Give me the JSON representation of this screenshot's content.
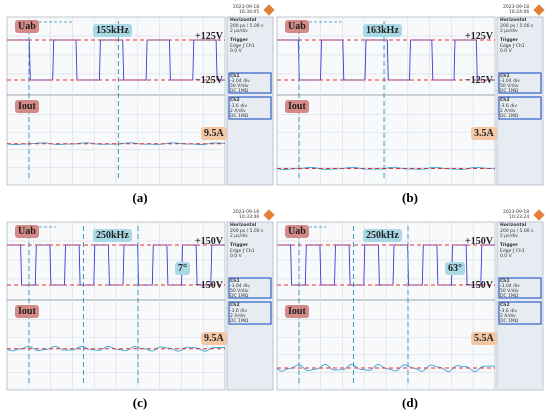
{
  "panels": [
    {
      "id": "a",
      "caption": "(a)",
      "date": "2023-09-18",
      "time": "16:34:05",
      "uab_label": "Uab",
      "iout_label": "Iout",
      "freq_label": "155kHz",
      "vpos_label": "+125V",
      "vneg_label": "−125V",
      "current_label": "9.5A",
      "angle_label": "",
      "menu": {
        "horizontal": "Horizontal",
        "h1": "200 ps / 5.00 s",
        "h2": "2 μs/div",
        "trigger": "Trigger",
        "t1": "Edge  ƒ  Ch1",
        "t2": "0.0 V",
        "ch1": "Ch1",
        "c1": "-3.04 div",
        "c2": "50 V/div",
        "c3": "DC 1MΩ",
        "ch2": "Ch2",
        "c4": "-3.6 div",
        "c5": "2 A/div",
        "c6": "DC 1MΩ"
      },
      "square_period_div": 2.05,
      "duty": 0.5,
      "current_ripple": 0.12,
      "current_level": 1.5
    },
    {
      "id": "b",
      "caption": "(b)",
      "date": "2023-09-18",
      "time": "16:24:06",
      "uab_label": "Uab",
      "iout_label": "Iout",
      "freq_label": "163kHz",
      "vpos_label": "+125V",
      "vneg_label": "−125V",
      "current_label": "3.5A",
      "angle_label": "",
      "menu": {
        "horizontal": "Horizontal",
        "h1": "200 ps / 5.00 s",
        "h2": "2 μs/div",
        "trigger": "Trigger",
        "t1": "Edge  ƒ  Ch1",
        "t2": "0.0 V",
        "ch1": "Ch1",
        "c1": "-3.04 div",
        "c2": "50 V/div",
        "c3": "DC 1MΩ",
        "ch2": "Ch2",
        "c4": "-3.6 div",
        "c5": "2 A/div",
        "c6": "DC 1MΩ"
      },
      "square_period_div": 1.95,
      "duty": 0.5,
      "current_ripple": 0.15,
      "current_level": 0.6
    },
    {
      "id": "c",
      "caption": "(c)",
      "date": "2023-09-18",
      "time": "10:33:46",
      "uab_label": "Uab",
      "iout_label": "Iout",
      "freq_label": "250kHz",
      "vpos_label": "+150V",
      "vneg_label": "−150V",
      "current_label": "9.5A",
      "angle_label": "7°",
      "menu": {
        "horizontal": "Horizontal",
        "h1": "200 ps / 5.00 s",
        "h2": "2 μs/div",
        "trigger": "Trigger",
        "t1": "Edge  ƒ  Ch1",
        "t2": "0.0 V",
        "ch1": "Ch1",
        "c1": "-3.04 div",
        "c2": "50 V/div",
        "c3": "DC 1MΩ",
        "ch2": "Ch2",
        "c4": "-3.6 div",
        "c5": "2 A/div",
        "c6": "DC 1MΩ"
      },
      "square_period_div": 1.25,
      "duty": 0.5,
      "current_ripple": 0.3,
      "current_level": 1.5
    },
    {
      "id": "d",
      "caption": "(d)",
      "date": "2023-09-18",
      "time": "10:23:24",
      "uab_label": "Uab",
      "iout_label": "Iout",
      "freq_label": "250kHz",
      "vpos_label": "+150V",
      "vneg_label": "−150V",
      "current_label": "5.5A",
      "angle_label": "63°",
      "menu": {
        "horizontal": "Horizontal",
        "h1": "200 ps / 5.00 s",
        "h2": "2 μs/div",
        "trigger": "Trigger",
        "t1": "Edge  ƒ  Ch1",
        "t2": "0.0 V",
        "ch1": "Ch1",
        "c1": "-3.04 div",
        "c2": "50 V/div",
        "c3": "DC 1MΩ",
        "ch2": "Ch2",
        "c4": "-3.6 div",
        "c5": "2 A/div",
        "c6": "DC 1MΩ"
      },
      "square_period_div": 1.25,
      "duty": 0.5,
      "current_ripple": 0.45,
      "current_level": 0.8
    }
  ],
  "colors": {
    "trace_voltage": "#3a3ad8",
    "trace_current": "#3aa7d8",
    "dash_red": "#e03030",
    "dash_cyan": "#2a8fc0",
    "grid": "#c9d1da",
    "screen_bg": "#f7f9fb",
    "menu_bg": "#e6ecf2",
    "ch_box": "#3060c8"
  },
  "chart_data": [
    {
      "type": "line",
      "title": "(a)",
      "series": [
        {
          "name": "Uab",
          "values": [
            125,
            -125
          ]
        },
        {
          "name": "Iout",
          "values": [
            9.5
          ]
        }
      ],
      "frequency_kHz": 155
    },
    {
      "type": "line",
      "title": "(b)",
      "series": [
        {
          "name": "Uab",
          "values": [
            125,
            -125
          ]
        },
        {
          "name": "Iout",
          "values": [
            3.5
          ]
        }
      ],
      "frequency_kHz": 163
    },
    {
      "type": "line",
      "title": "(c)",
      "series": [
        {
          "name": "Uab",
          "values": [
            150,
            -150
          ]
        },
        {
          "name": "Iout",
          "values": [
            9.5
          ]
        }
      ],
      "frequency_kHz": 250,
      "phase_deg": 7
    },
    {
      "type": "line",
      "title": "(d)",
      "series": [
        {
          "name": "Uab",
          "values": [
            150,
            -150
          ]
        },
        {
          "name": "Iout",
          "values": [
            5.5
          ]
        }
      ],
      "frequency_kHz": 250,
      "phase_deg": 63
    }
  ]
}
